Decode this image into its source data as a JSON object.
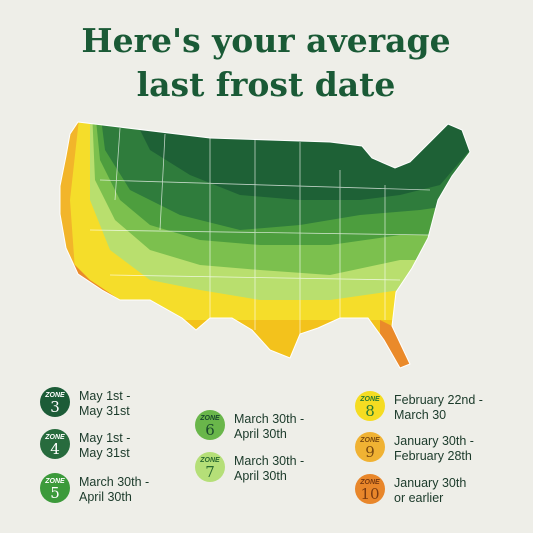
{
  "title": [
    "Here's your average",
    "last frost date"
  ],
  "legend": [
    {
      "zone_label": "ZONE",
      "zone": "3",
      "dates": [
        "May 1st -",
        "May 31st"
      ]
    },
    {
      "zone_label": "ZONE",
      "zone": "4",
      "dates": [
        "May 1st -",
        "May 31st"
      ]
    },
    {
      "zone_label": "ZONE",
      "zone": "5",
      "dates": [
        "March 30th -",
        "April 30th"
      ]
    },
    {
      "zone_label": "ZONE",
      "zone": "6",
      "dates": [
        "March 30th -",
        "April 30th"
      ]
    },
    {
      "zone_label": "ZONE",
      "zone": "7",
      "dates": [
        "March 30th -",
        "April 30th"
      ]
    },
    {
      "zone_label": "ZONE",
      "zone": "8",
      "dates": [
        "February 22nd -",
        "March 30"
      ]
    },
    {
      "zone_label": "ZONE",
      "zone": "9",
      "dates": [
        "January 30th -",
        "February 28th"
      ]
    },
    {
      "zone_label": "ZONE",
      "zone": "10",
      "dates": [
        "January 30th",
        "or earlier"
      ]
    }
  ]
}
